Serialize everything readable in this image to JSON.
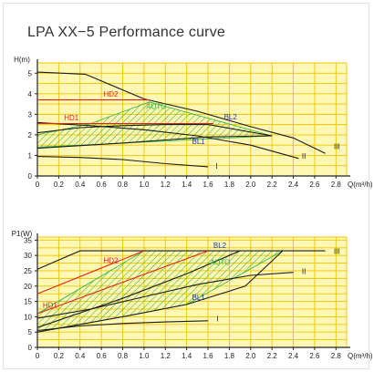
{
  "page": {
    "title": "LPA XX−5 Performance curve"
  },
  "colors": {
    "plot_bg": "#fff8b4",
    "grid": "#f0c400",
    "hatch": "#2db24a",
    "red": "#e0231b",
    "curve": "#1a1a1a",
    "axis_text": "#222222"
  },
  "chart_data": [
    {
      "type": "line",
      "ylabel": "H(m)",
      "xlabel": "Q(m³/h)",
      "xlim": [
        0,
        2.9
      ],
      "ylim": [
        0,
        5.5
      ],
      "grid": true,
      "x_ticks": [
        "0",
        "0.2",
        "0.4",
        "0.6",
        "0.8",
        "1.0",
        "1.2",
        "1.4",
        "1.6",
        "1.8",
        "2.0",
        "2.2",
        "2.4",
        "2.6",
        "2.8"
      ],
      "y_ticks": [
        "0",
        "1",
        "2",
        "3",
        "4",
        "5"
      ],
      "series": [
        {
          "name": "III",
          "color": "#1a1a1a",
          "points": [
            [
              0,
              5.05
            ],
            [
              0.45,
              4.95
            ],
            [
              1.0,
              3.75
            ],
            [
              1.5,
              3.15
            ],
            [
              2.0,
              2.4
            ],
            [
              2.4,
              1.85
            ],
            [
              2.7,
              1.1
            ]
          ]
        },
        {
          "name": "II",
          "color": "#1a1a1a",
          "points": [
            [
              0,
              2.6
            ],
            [
              0.5,
              2.45
            ],
            [
              1.0,
              2.25
            ],
            [
              1.5,
              1.95
            ],
            [
              2.0,
              1.5
            ],
            [
              2.45,
              0.85
            ]
          ]
        },
        {
          "name": "I",
          "color": "#1a1a1a",
          "points": [
            [
              0,
              0.95
            ],
            [
              0.4,
              0.9
            ],
            [
              0.8,
              0.8
            ],
            [
              1.2,
              0.6
            ],
            [
              1.6,
              0.45
            ]
          ]
        },
        {
          "name": "HD2",
          "color": "#e0231b",
          "points": [
            [
              0,
              3.7
            ],
            [
              1.05,
              3.7
            ]
          ]
        },
        {
          "name": "HD1",
          "color": "#e0231b",
          "points": [
            [
              0,
              2.55
            ],
            [
              1.65,
              2.55
            ]
          ]
        },
        {
          "name": "BL2",
          "color": "#1a1a1a",
          "points": [
            [
              0,
              2.1
            ],
            [
              0.4,
              2.35
            ],
            [
              0.8,
              2.45
            ],
            [
              1.2,
              2.5
            ],
            [
              1.6,
              2.5
            ],
            [
              2.2,
              1.95
            ]
          ]
        },
        {
          "name": "BL1",
          "color": "#1a1a1a",
          "points": [
            [
              0,
              1.35
            ],
            [
              0.8,
              1.6
            ],
            [
              1.2,
              1.75
            ],
            [
              1.6,
              1.9
            ],
            [
              2.2,
              1.95
            ]
          ]
        }
      ],
      "region": {
        "label": "AUTO",
        "polygon": [
          [
            0,
            2.0
          ],
          [
            0.5,
            2.55
          ],
          [
            1.05,
            3.6
          ],
          [
            2.2,
            1.95
          ],
          [
            0,
            1.4
          ]
        ]
      },
      "labels": [
        {
          "text": "III",
          "x": 2.78,
          "y": 1.3,
          "color": "#1a1a1a"
        },
        {
          "text": "II",
          "x": 2.48,
          "y": 0.85,
          "color": "#1a1a1a"
        },
        {
          "text": "I",
          "x": 1.67,
          "y": 0.35,
          "color": "#1a1a1a"
        },
        {
          "text": "HD2",
          "x": 0.62,
          "y": 3.85,
          "color": "#e0231b"
        },
        {
          "text": "HD1",
          "x": 0.25,
          "y": 2.7,
          "color": "#e0231b"
        },
        {
          "text": "AUTO",
          "x": 1.02,
          "y": 3.25,
          "color": "#2db24a"
        },
        {
          "text": "BL2",
          "x": 1.75,
          "y": 2.75,
          "color": "#1a3a9c"
        },
        {
          "text": "BL1",
          "x": 1.45,
          "y": 1.55,
          "color": "#1a3a9c"
        }
      ]
    },
    {
      "type": "line",
      "ylabel": "P1(W)",
      "xlabel": "Q(m³/h)",
      "xlim": [
        0,
        2.9
      ],
      "ylim": [
        0,
        36
      ],
      "grid": true,
      "x_ticks": [
        "0",
        "0.2",
        "0.4",
        "0.6",
        "0.8",
        "1.0",
        "1.2",
        "1.4",
        "1.6",
        "1.8",
        "2.0",
        "2.2",
        "2.4",
        "2.6",
        "2.8"
      ],
      "y_ticks": [
        "0",
        "5",
        "10",
        "15",
        "20",
        "25",
        "30",
        "35"
      ],
      "series": [
        {
          "name": "III",
          "color": "#1a1a1a",
          "points": [
            [
              0,
              25.5
            ],
            [
              0.4,
              31.5
            ],
            [
              2.7,
              31.5
            ]
          ]
        },
        {
          "name": "II",
          "color": "#1a1a1a",
          "points": [
            [
              0,
              9.5
            ],
            [
              0.5,
              12.5
            ],
            [
              1.0,
              16.5
            ],
            [
              1.5,
              20.5
            ],
            [
              2.0,
              23.5
            ],
            [
              2.4,
              24.5
            ]
          ]
        },
        {
          "name": "I",
          "color": "#1a1a1a",
          "points": [
            [
              0,
              5.5
            ],
            [
              0.4,
              7.0
            ],
            [
              0.8,
              7.8
            ],
            [
              1.2,
              8.3
            ],
            [
              1.6,
              8.7
            ]
          ]
        },
        {
          "name": "HD2",
          "color": "#e0231b",
          "points": [
            [
              0,
              17.5
            ],
            [
              1.0,
              31.5
            ]
          ]
        },
        {
          "name": "HD1",
          "color": "#e0231b",
          "points": [
            [
              0,
              11.0
            ],
            [
              1.6,
              31.5
            ]
          ]
        },
        {
          "name": "BL2",
          "color": "#1a1a1a",
          "points": [
            [
              0,
              6.5
            ],
            [
              0.8,
              16.0
            ],
            [
              1.4,
              24.0
            ],
            [
              1.9,
              31.5
            ]
          ]
        },
        {
          "name": "BL1",
          "color": "#1a1a1a",
          "points": [
            [
              0,
              5.0
            ],
            [
              0.8,
              10.0
            ],
            [
              1.4,
              14.0
            ],
            [
              1.95,
              20.0
            ],
            [
              2.3,
              31.5
            ]
          ]
        }
      ],
      "region": {
        "label": "AUTO",
        "polygon": [
          [
            0,
            11.0
          ],
          [
            1.0,
            31.5
          ],
          [
            2.3,
            31.5
          ],
          [
            1.4,
            14.0
          ],
          [
            0.8,
            10.0
          ],
          [
            0,
            5.0
          ]
        ]
      },
      "labels": [
        {
          "text": "III",
          "x": 2.78,
          "y": 30.5,
          "color": "#1a1a1a"
        },
        {
          "text": "II",
          "x": 2.48,
          "y": 24.0,
          "color": "#1a1a1a"
        },
        {
          "text": "I",
          "x": 1.68,
          "y": 8.5,
          "color": "#1a1a1a"
        },
        {
          "text": "HD2",
          "x": 0.62,
          "y": 27.5,
          "color": "#e0231b"
        },
        {
          "text": "HD1",
          "x": 0.05,
          "y": 13.0,
          "color": "#e0231b"
        },
        {
          "text": "AUTO",
          "x": 1.62,
          "y": 27.0,
          "color": "#2db24a"
        },
        {
          "text": "BL2",
          "x": 1.65,
          "y": 32.5,
          "color": "#1a3a9c"
        },
        {
          "text": "BL1",
          "x": 1.45,
          "y": 15.5,
          "color": "#1a3a9c"
        }
      ]
    }
  ]
}
